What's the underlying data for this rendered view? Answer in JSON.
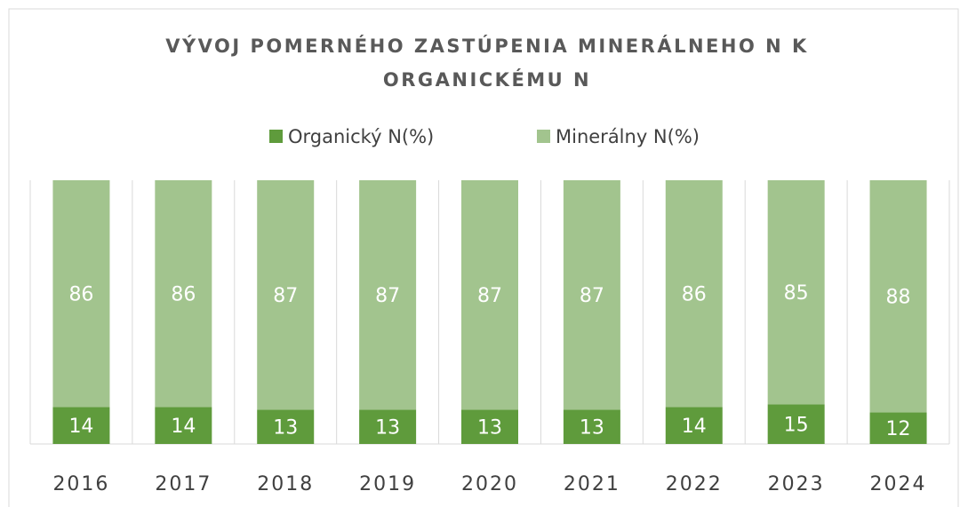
{
  "chart_data": {
    "type": "bar",
    "stacked": "percent",
    "title": [
      "VÝVOJ POMERNÉHO ZASTÚPENIA MINERÁLNEHO N K",
      "ORGANICKÉMU N"
    ],
    "categories": [
      "2016",
      "2017",
      "2018",
      "2019",
      "2020",
      "2021",
      "2022",
      "2023",
      "2024"
    ],
    "series": [
      {
        "name": "Organický N(%)",
        "color": "#5f9b3c",
        "values": [
          14,
          14,
          13,
          13,
          13,
          13,
          14,
          15,
          12
        ]
      },
      {
        "name": "Minerálny N(%)",
        "color": "#a2c48e",
        "values": [
          86,
          86,
          87,
          87,
          87,
          87,
          86,
          85,
          88
        ]
      }
    ],
    "legend": "top"
  }
}
